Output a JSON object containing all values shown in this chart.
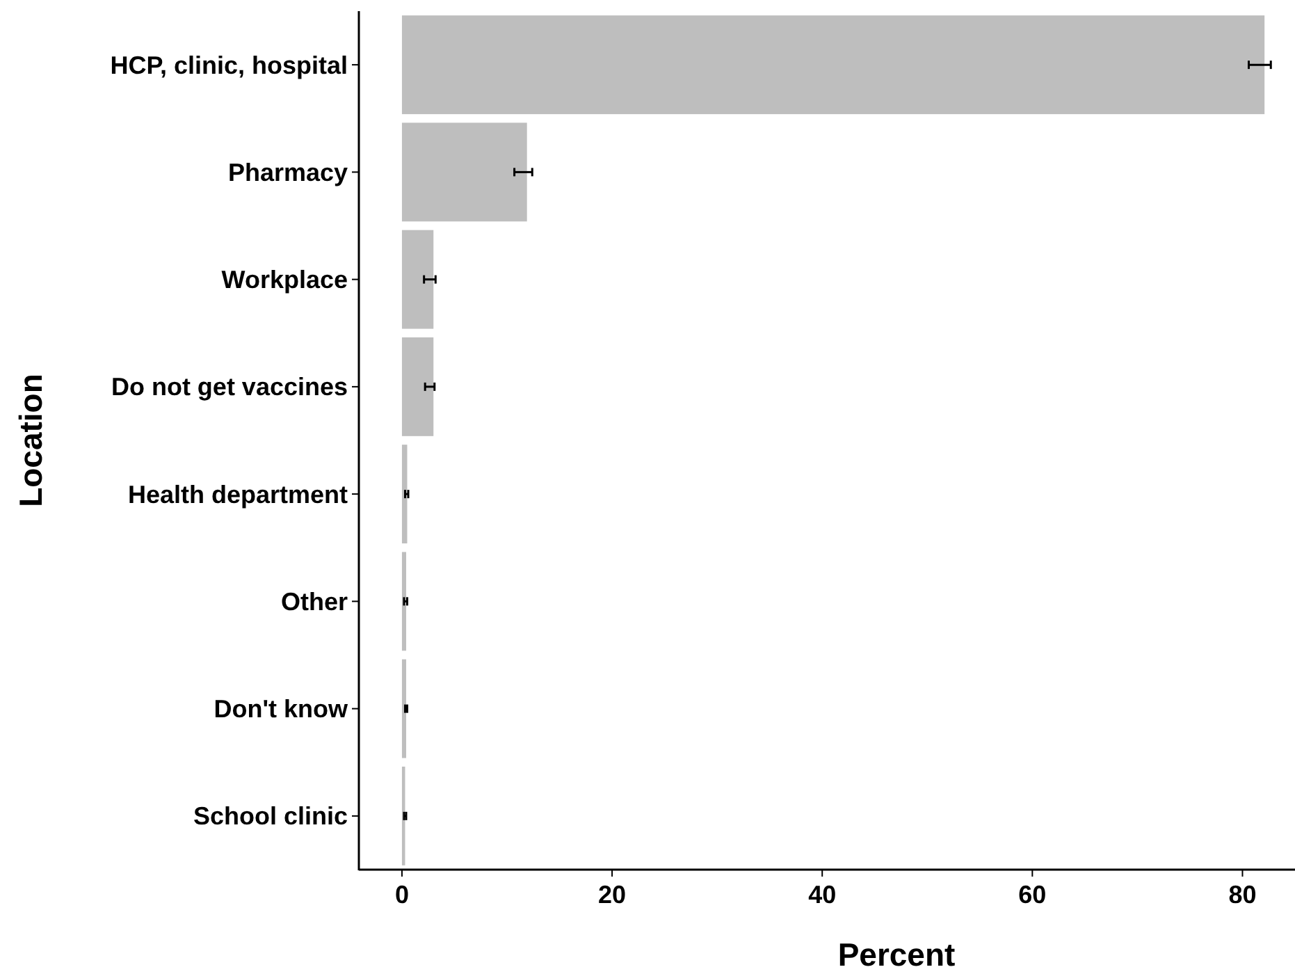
{
  "chart_data": {
    "type": "bar",
    "orientation": "horizontal",
    "xlabel": "Percent",
    "ylabel": "Location",
    "categories": [
      "HCP, clinic, hospital",
      "Pharmacy",
      "Workplace",
      "Do not get vaccines",
      "Health department",
      "Other",
      "Don't know",
      "School clinic"
    ],
    "values": [
      82.1,
      11.9,
      3.0,
      3.0,
      0.5,
      0.4,
      0.4,
      0.3
    ],
    "errors": [
      [
        80.6,
        82.7
      ],
      [
        10.7,
        12.4
      ],
      [
        2.1,
        3.2
      ],
      [
        2.2,
        3.1
      ],
      [
        0.3,
        0.6
      ],
      [
        0.2,
        0.5
      ],
      [
        0.3,
        0.5
      ],
      [
        0.2,
        0.4
      ]
    ],
    "color": "#bebebe",
    "xlim": [
      -4.1,
      85
    ],
    "xticks": [
      0,
      20,
      40,
      60,
      80
    ],
    "grid": false
  }
}
